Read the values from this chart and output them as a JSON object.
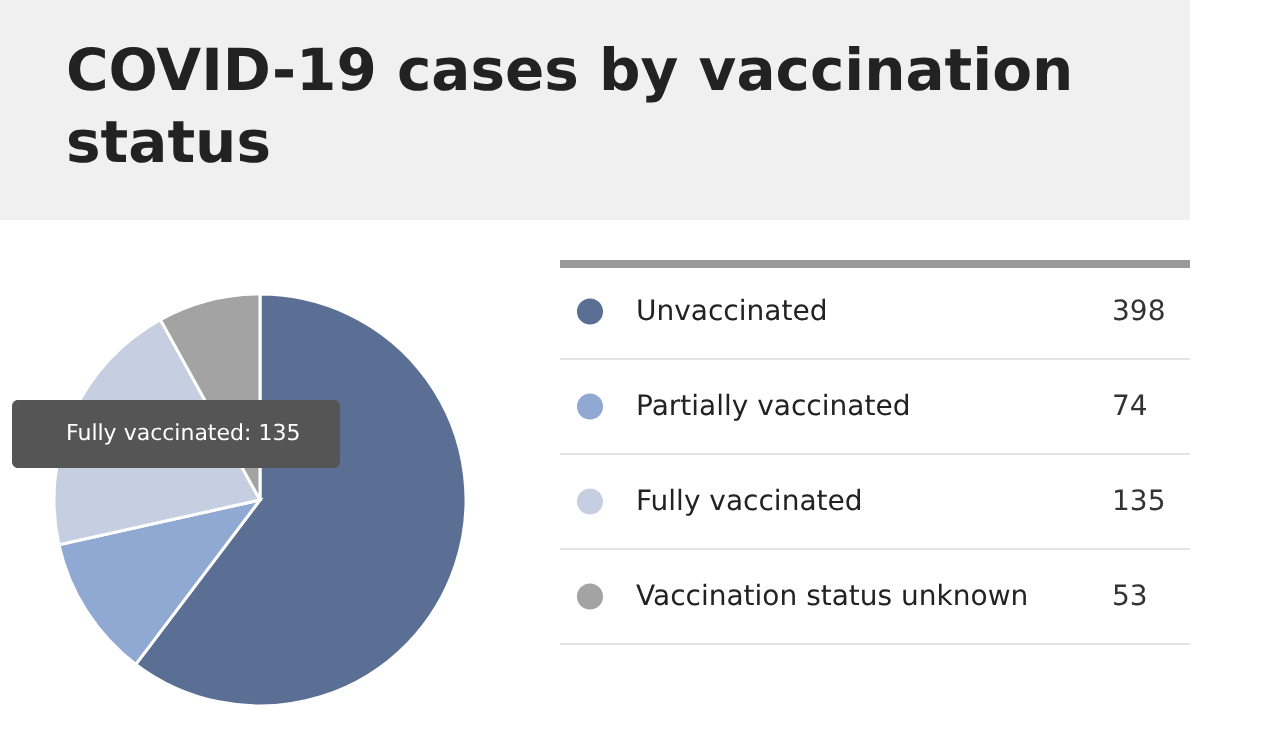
{
  "chart_data": {
    "type": "pie",
    "title": "COVID-19 cases by vaccination status",
    "categories": [
      "Unvaccinated",
      "Partially vaccinated",
      "Fully vaccinated",
      "Vaccination status unknown"
    ],
    "values": [
      398,
      74,
      135,
      53
    ],
    "colors": [
      "#5b6f94",
      "#8fa9d2",
      "#c5cfe1",
      "#a3a3a3"
    ],
    "data_labels": true,
    "legend": "right",
    "annotations": [
      "Fully vaccinated: 135"
    ]
  }
}
